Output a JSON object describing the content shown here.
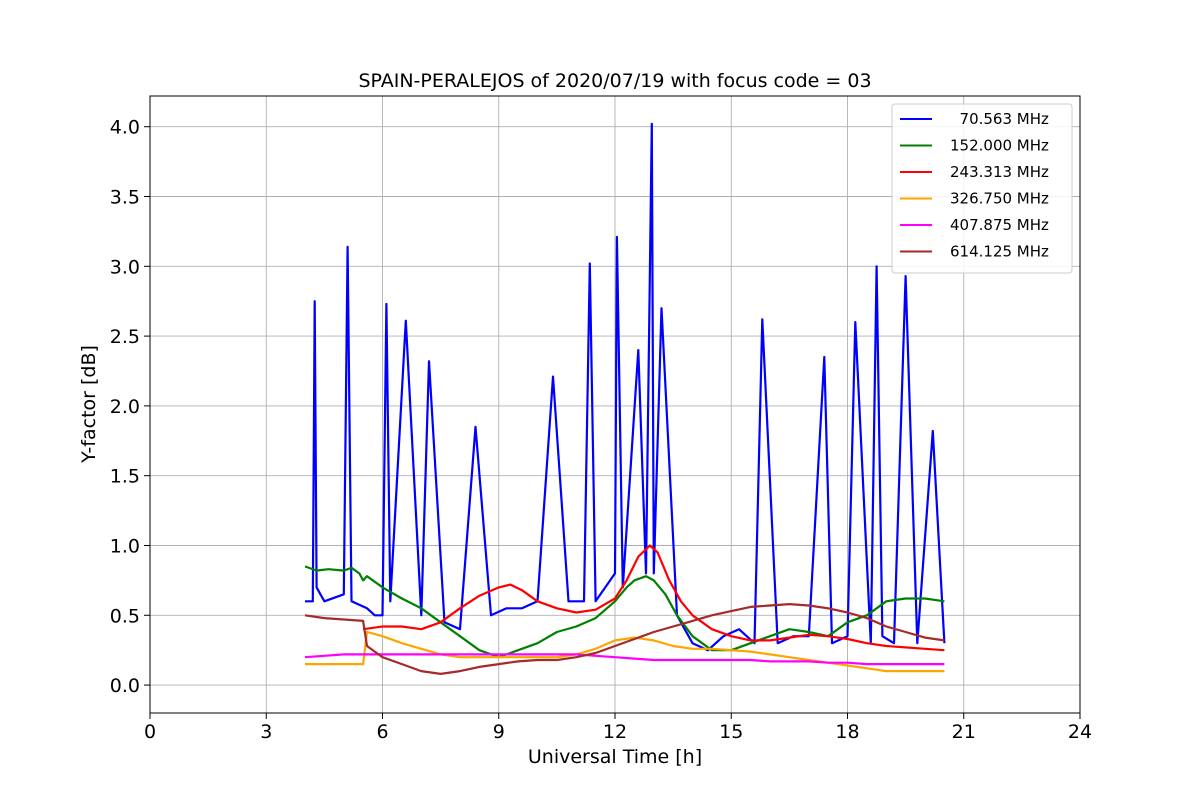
{
  "chart_data": {
    "type": "line",
    "title": "SPAIN-PERALEJOS of 2020/07/19 with focus code = 03",
    "xlabel": "Universal Time [h]",
    "ylabel": "Y-factor [dB]",
    "xlim": [
      0,
      24
    ],
    "ylim": [
      -0.2,
      4.22
    ],
    "xticks": [
      0,
      3,
      6,
      9,
      12,
      15,
      18,
      21,
      24
    ],
    "xtick_labels": [
      "0",
      "3",
      "6",
      "9",
      "12",
      "15",
      "18",
      "21",
      "24"
    ],
    "yticks": [
      0.0,
      0.5,
      1.0,
      1.5,
      2.0,
      2.5,
      3.0,
      3.5,
      4.0
    ],
    "ytick_labels": [
      "0.0",
      "0.5",
      "1.0",
      "1.5",
      "2.0",
      "2.5",
      "3.0",
      "3.5",
      "4.0"
    ],
    "grid": true,
    "legend_position": "top-right",
    "series": [
      {
        "name": "  70.563 MHz",
        "color": "#0000ff",
        "x": [
          4.0,
          4.2,
          4.25,
          4.3,
          4.5,
          5.0,
          5.1,
          5.2,
          5.6,
          5.8,
          6.0,
          6.1,
          6.2,
          6.6,
          7.0,
          7.2,
          7.6,
          8.0,
          8.4,
          8.8,
          9.2,
          9.6,
          10.0,
          10.4,
          10.8,
          11.2,
          11.35,
          11.5,
          12.0,
          12.05,
          12.2,
          12.6,
          12.8,
          12.95,
          13.0,
          13.2,
          13.6,
          14.0,
          14.4,
          14.8,
          15.2,
          15.6,
          15.8,
          16.2,
          16.6,
          17.0,
          17.4,
          17.6,
          18.0,
          18.2,
          18.6,
          18.75,
          18.9,
          19.2,
          19.5,
          19.8,
          20.2,
          20.5
        ],
        "y": [
          0.6,
          0.6,
          2.75,
          0.7,
          0.6,
          0.65,
          3.14,
          0.6,
          0.55,
          0.5,
          0.5,
          2.73,
          0.6,
          2.61,
          0.5,
          2.32,
          0.45,
          0.4,
          1.85,
          0.5,
          0.55,
          0.55,
          0.6,
          2.21,
          0.6,
          0.6,
          3.02,
          0.6,
          0.8,
          3.21,
          0.7,
          2.4,
          0.8,
          4.02,
          0.8,
          2.7,
          0.5,
          0.3,
          0.25,
          0.35,
          0.4,
          0.3,
          2.62,
          0.3,
          0.35,
          0.35,
          2.35,
          0.3,
          0.35,
          2.6,
          0.3,
          3.0,
          0.35,
          0.3,
          2.93,
          0.3,
          1.82,
          0.3
        ]
      },
      {
        "name": "152.000 MHz",
        "color": "#008000",
        "x": [
          4.0,
          4.3,
          4.6,
          5.0,
          5.2,
          5.4,
          5.5,
          5.6,
          6.0,
          6.5,
          7.0,
          7.5,
          8.0,
          8.5,
          9.0,
          9.5,
          10.0,
          10.5,
          11.0,
          11.5,
          12.0,
          12.3,
          12.5,
          12.8,
          13.0,
          13.3,
          13.6,
          14.0,
          14.5,
          15.0,
          15.5,
          16.0,
          16.5,
          17.0,
          17.5,
          18.0,
          18.5,
          19.0,
          19.5,
          20.0,
          20.5
        ],
        "y": [
          0.85,
          0.82,
          0.83,
          0.82,
          0.84,
          0.8,
          0.75,
          0.78,
          0.7,
          0.62,
          0.55,
          0.45,
          0.35,
          0.25,
          0.2,
          0.25,
          0.3,
          0.38,
          0.42,
          0.48,
          0.6,
          0.7,
          0.75,
          0.78,
          0.75,
          0.65,
          0.5,
          0.35,
          0.25,
          0.25,
          0.3,
          0.35,
          0.4,
          0.38,
          0.35,
          0.45,
          0.5,
          0.6,
          0.62,
          0.62,
          0.6
        ]
      },
      {
        "name": "243.313 MHz",
        "color": "#ff0000",
        "x": [
          5.5,
          6.0,
          6.5,
          7.0,
          7.5,
          8.0,
          8.5,
          9.0,
          9.3,
          9.6,
          10.0,
          10.5,
          11.0,
          11.5,
          12.0,
          12.3,
          12.6,
          12.9,
          13.1,
          13.4,
          13.7,
          14.0,
          14.5,
          15.0,
          15.5,
          16.0,
          16.5,
          17.0,
          17.5,
          18.0,
          18.5,
          19.0,
          19.5,
          20.0,
          20.5
        ],
        "y": [
          0.4,
          0.42,
          0.42,
          0.4,
          0.45,
          0.55,
          0.64,
          0.7,
          0.72,
          0.68,
          0.6,
          0.55,
          0.52,
          0.54,
          0.62,
          0.75,
          0.92,
          1.0,
          0.95,
          0.75,
          0.6,
          0.5,
          0.4,
          0.35,
          0.32,
          0.32,
          0.34,
          0.36,
          0.35,
          0.33,
          0.3,
          0.28,
          0.27,
          0.26,
          0.25
        ]
      },
      {
        "name": "326.750 MHz",
        "color": "#ffa500",
        "x": [
          4.0,
          4.5,
          5.0,
          5.5,
          5.6,
          6.0,
          6.5,
          7.0,
          7.5,
          8.0,
          8.5,
          9.0,
          9.5,
          10.0,
          10.5,
          11.0,
          11.5,
          12.0,
          12.5,
          13.0,
          13.5,
          14.0,
          14.5,
          15.0,
          15.5,
          16.0,
          16.5,
          17.0,
          17.5,
          18.0,
          18.5,
          19.0,
          19.5,
          20.0,
          20.5
        ],
        "y": [
          0.15,
          0.15,
          0.15,
          0.15,
          0.38,
          0.35,
          0.3,
          0.26,
          0.22,
          0.2,
          0.2,
          0.2,
          0.2,
          0.2,
          0.2,
          0.22,
          0.26,
          0.32,
          0.34,
          0.32,
          0.28,
          0.26,
          0.26,
          0.25,
          0.24,
          0.22,
          0.2,
          0.18,
          0.16,
          0.14,
          0.12,
          0.1,
          0.1,
          0.1,
          0.1
        ]
      },
      {
        "name": "407.875 MHz",
        "color": "#ff00ff",
        "x": [
          4.0,
          4.5,
          5.0,
          5.5,
          6.0,
          6.5,
          7.0,
          7.5,
          8.0,
          8.5,
          9.0,
          9.5,
          10.0,
          10.5,
          11.0,
          11.5,
          12.0,
          12.5,
          13.0,
          13.5,
          14.0,
          14.5,
          15.0,
          15.5,
          16.0,
          16.5,
          17.0,
          17.5,
          18.0,
          18.5,
          19.0,
          19.5,
          20.0,
          20.5
        ],
        "y": [
          0.2,
          0.21,
          0.22,
          0.22,
          0.22,
          0.22,
          0.22,
          0.22,
          0.22,
          0.22,
          0.22,
          0.22,
          0.22,
          0.22,
          0.22,
          0.21,
          0.2,
          0.19,
          0.18,
          0.18,
          0.18,
          0.18,
          0.18,
          0.18,
          0.17,
          0.17,
          0.17,
          0.16,
          0.16,
          0.15,
          0.15,
          0.15,
          0.15,
          0.15
        ]
      },
      {
        "name": "614.125 MHz",
        "color": "#a52a2a",
        "x": [
          4.0,
          4.5,
          5.0,
          5.5,
          5.6,
          6.0,
          6.5,
          7.0,
          7.5,
          8.0,
          8.5,
          9.0,
          9.5,
          10.0,
          10.5,
          11.0,
          11.5,
          12.0,
          12.5,
          13.0,
          13.5,
          14.0,
          14.5,
          15.0,
          15.5,
          16.0,
          16.5,
          17.0,
          17.5,
          18.0,
          18.5,
          19.0,
          19.5,
          20.0,
          20.5
        ],
        "y": [
          0.5,
          0.48,
          0.47,
          0.46,
          0.28,
          0.2,
          0.15,
          0.1,
          0.08,
          0.1,
          0.13,
          0.15,
          0.17,
          0.18,
          0.18,
          0.2,
          0.23,
          0.28,
          0.33,
          0.38,
          0.42,
          0.46,
          0.5,
          0.53,
          0.56,
          0.57,
          0.58,
          0.57,
          0.55,
          0.52,
          0.48,
          0.42,
          0.38,
          0.34,
          0.32
        ]
      }
    ]
  }
}
